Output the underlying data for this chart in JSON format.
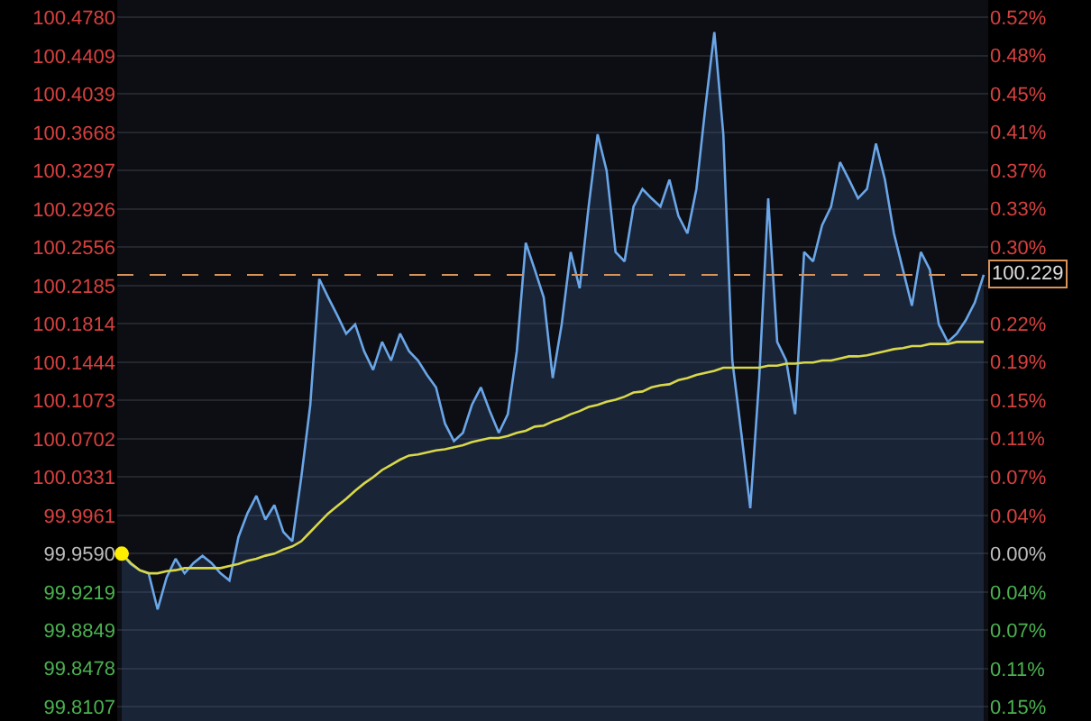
{
  "chart_data": {
    "type": "area",
    "categories": [
      null,
      null,
      null,
      null,
      null,
      null,
      null,
      null,
      null,
      null,
      null,
      null,
      null,
      null,
      null,
      null,
      null,
      null,
      null,
      null,
      null,
      null,
      null,
      null,
      null,
      null,
      null,
      null,
      null,
      null,
      null,
      null,
      null,
      null,
      null,
      null,
      null,
      null,
      null,
      null,
      null,
      null,
      null,
      null,
      null,
      null,
      null,
      null,
      null,
      null,
      null,
      null,
      null,
      null,
      null,
      null,
      null,
      null,
      null,
      null,
      null,
      null,
      null,
      null,
      null,
      null,
      null,
      null,
      null,
      null,
      null,
      null,
      null,
      null,
      null,
      null,
      null,
      null,
      null,
      null,
      null,
      null,
      null,
      null,
      null,
      null,
      null,
      null,
      null,
      null,
      null,
      null,
      null,
      null,
      null,
      null,
      null
    ],
    "series": [
      {
        "color": "#6aa6e8",
        "values": [
          99.959,
          99.949,
          99.943,
          99.94,
          99.905,
          99.936,
          99.954,
          99.94,
          99.95,
          99.957,
          99.95,
          99.94,
          99.933,
          99.975,
          99.998,
          100.015,
          99.992,
          100.006,
          99.98,
          99.971,
          100.033,
          100.103,
          100.225,
          100.207,
          100.19,
          100.172,
          100.181,
          100.155,
          100.137,
          100.164,
          100.146,
          100.172,
          100.155,
          100.146,
          100.132,
          100.12,
          100.085,
          100.068,
          100.076,
          100.103,
          100.12,
          100.097,
          100.076,
          100.094,
          100.155,
          100.26,
          100.234,
          100.207,
          100.129,
          100.181,
          100.251,
          100.216,
          100.295,
          100.365,
          100.33,
          100.251,
          100.242,
          100.295,
          100.312,
          100.303,
          100.295,
          100.321,
          100.286,
          100.269,
          100.312,
          100.391,
          100.464,
          100.365,
          100.146,
          100.076,
          100.003,
          100.129,
          100.303,
          100.164,
          100.146,
          100.094,
          100.251,
          100.242,
          100.277,
          100.295,
          100.338,
          100.321,
          100.303,
          100.312,
          100.356,
          100.321,
          100.269,
          100.234,
          100.199,
          100.251,
          100.234,
          100.181,
          100.164,
          100.172,
          100.185,
          100.202,
          100.229
        ]
      },
      {
        "type": "line",
        "color": "#d8d84a",
        "values": [
          99.959,
          99.95,
          99.943,
          99.94,
          99.94,
          99.942,
          99.943,
          99.945,
          99.945,
          99.945,
          99.945,
          99.945,
          99.947,
          99.949,
          99.952,
          99.954,
          99.957,
          99.959,
          99.963,
          99.966,
          99.971,
          99.98,
          99.989,
          99.998,
          100.005,
          100.012,
          100.02,
          100.027,
          100.033,
          100.04,
          100.045,
          100.05,
          100.054,
          100.055,
          100.057,
          100.059,
          100.06,
          100.062,
          100.064,
          100.067,
          100.069,
          100.071,
          100.071,
          100.073,
          100.076,
          100.078,
          100.082,
          100.083,
          100.087,
          100.09,
          100.094,
          100.097,
          100.101,
          100.103,
          100.106,
          100.108,
          100.111,
          100.115,
          100.116,
          100.12,
          100.122,
          100.123,
          100.127,
          100.129,
          100.132,
          100.134,
          100.136,
          100.139,
          100.139,
          100.139,
          100.139,
          100.139,
          100.141,
          100.141,
          100.143,
          100.143,
          100.144,
          100.144,
          100.146,
          100.146,
          100.148,
          100.15,
          100.15,
          100.151,
          100.153,
          100.155,
          100.157,
          100.158,
          100.16,
          100.16,
          100.162,
          100.162,
          100.162,
          100.164,
          100.164,
          100.164,
          100.164
        ]
      },
      {
        "type": "scatter",
        "color": "#ffee00",
        "marker": "circle",
        "values": [
          99.959,
          null,
          null,
          null,
          null,
          null,
          null,
          null,
          null,
          null,
          null,
          null,
          null,
          null,
          null,
          null,
          null,
          null,
          null,
          null,
          null,
          null,
          null,
          null,
          null,
          null,
          null,
          null,
          null,
          null,
          null,
          null,
          null,
          null,
          null,
          null,
          null,
          null,
          null,
          null,
          null,
          null,
          null,
          null,
          null,
          null,
          null,
          null,
          null,
          null,
          null,
          null,
          null,
          null,
          null,
          null,
          null,
          null,
          null,
          null,
          null,
          null,
          null,
          null,
          null,
          null,
          null,
          null,
          null,
          null,
          null,
          null,
          null,
          null,
          null,
          null,
          null,
          null,
          null,
          null,
          null,
          null,
          null,
          null,
          null,
          null,
          null,
          null,
          null,
          null,
          null,
          null,
          null,
          null,
          null,
          null,
          null
        ]
      }
    ],
    "ylim": [
      99.797,
      100.495
    ],
    "yticks": [
      99.8107,
      99.8478,
      99.8849,
      99.9219,
      {
        "value": 99.959,
        "label": "99.9590"
      },
      99.9961,
      100.0331,
      100.0702,
      100.1073,
      100.1444,
      100.1814,
      100.2185,
      100.2556,
      100.2926,
      100.3297,
      100.3668,
      100.4039,
      100.4409,
      {
        "value": 100.478,
        "label": "100.4780"
      }
    ],
    "y2lim": [
      -0.162,
      0.536
    ],
    "y2ticks": [
      {
        "value": -0.1484,
        "label": "0.15%"
      },
      {
        "value": -0.1113,
        "label": "0.11%"
      },
      {
        "value": -0.0742,
        "label": "0.07%"
      },
      {
        "value": -0.0371,
        "label": "0.04%"
      },
      {
        "value": 0,
        "label": "0.00%"
      },
      {
        "value": 0.0371,
        "label": "0.04%"
      },
      {
        "value": 0.0742,
        "label": "0.07%"
      },
      {
        "value": 0.1113,
        "label": "0.11%"
      },
      {
        "value": 0.1484,
        "label": "0.15%"
      },
      {
        "value": 0.1855,
        "label": "0.19%"
      },
      {
        "value": 0.2226,
        "label": "0.22%"
      },
      {
        "value": 0.2968,
        "label": "0.30%"
      },
      {
        "value": 0.3339,
        "label": "0.33%"
      },
      {
        "value": 0.371,
        "label": "0.37%"
      },
      {
        "value": 0.4081,
        "label": "0.41%"
      },
      {
        "value": 0.4452,
        "label": "0.45%"
      },
      {
        "value": 0.4823,
        "label": "0.48%"
      },
      {
        "value": 0.5194,
        "label": "0.52%"
      }
    ],
    "ref_lines": [
      {
        "axis": "y",
        "value": 100.229,
        "label": "100.229",
        "color": "#d8935a",
        "line_style": "dashed"
      }
    ],
    "grid": "y"
  }
}
